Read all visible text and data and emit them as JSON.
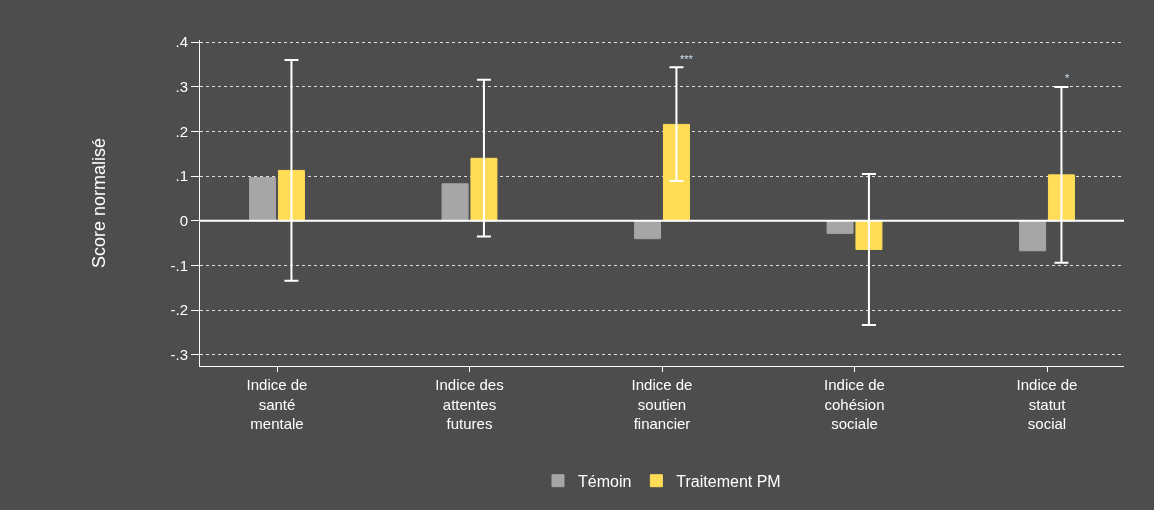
{
  "chart_data": {
    "type": "bar",
    "ylabel": "Score normalisé",
    "categories": [
      "Indice de\nsanté\nmentale",
      "Indice des\nattentes\nfutures",
      "Indice de\nsoutien\nfinancier",
      "Indice de\ncohésion\nsociale",
      "Indice de\nstatut\nsocial"
    ],
    "series": [
      {
        "name": "Témoin",
        "color": "#a6a6a6",
        "values": [
          0.097,
          0.083,
          -0.04,
          -0.028,
          -0.067
        ]
      },
      {
        "name": "Traitement PM",
        "color": "#ffdd57",
        "values": [
          0.113,
          0.14,
          0.216,
          -0.064,
          0.103
        ],
        "errors": [
          [
            -0.134,
            0.36
          ],
          [
            -0.035,
            0.316
          ],
          [
            0.089,
            0.344
          ],
          [
            -0.233,
            0.105
          ],
          [
            -0.094,
            0.3
          ]
        ]
      }
    ],
    "annotations": [
      "***",
      "*"
    ],
    "ref_lines": [
      {
        "axis": "y",
        "value": 0,
        "color": "#ffffff",
        "line_style": "solid"
      }
    ],
    "ylim": [
      -0.325,
      0.405
    ],
    "yticks": [
      {
        "value": -0.3,
        "label": "-.3"
      },
      {
        "value": -0.2,
        "label": "-.2"
      },
      {
        "value": -0.1,
        "label": "-.1"
      },
      0,
      {
        "value": 0.1,
        "label": ".1"
      },
      {
        "value": 0.2,
        "label": ".2"
      },
      {
        "value": 0.3,
        "label": ".3"
      },
      {
        "value": 0.4,
        "label": ".4"
      }
    ],
    "grid": "y",
    "legend": "bottom"
  }
}
